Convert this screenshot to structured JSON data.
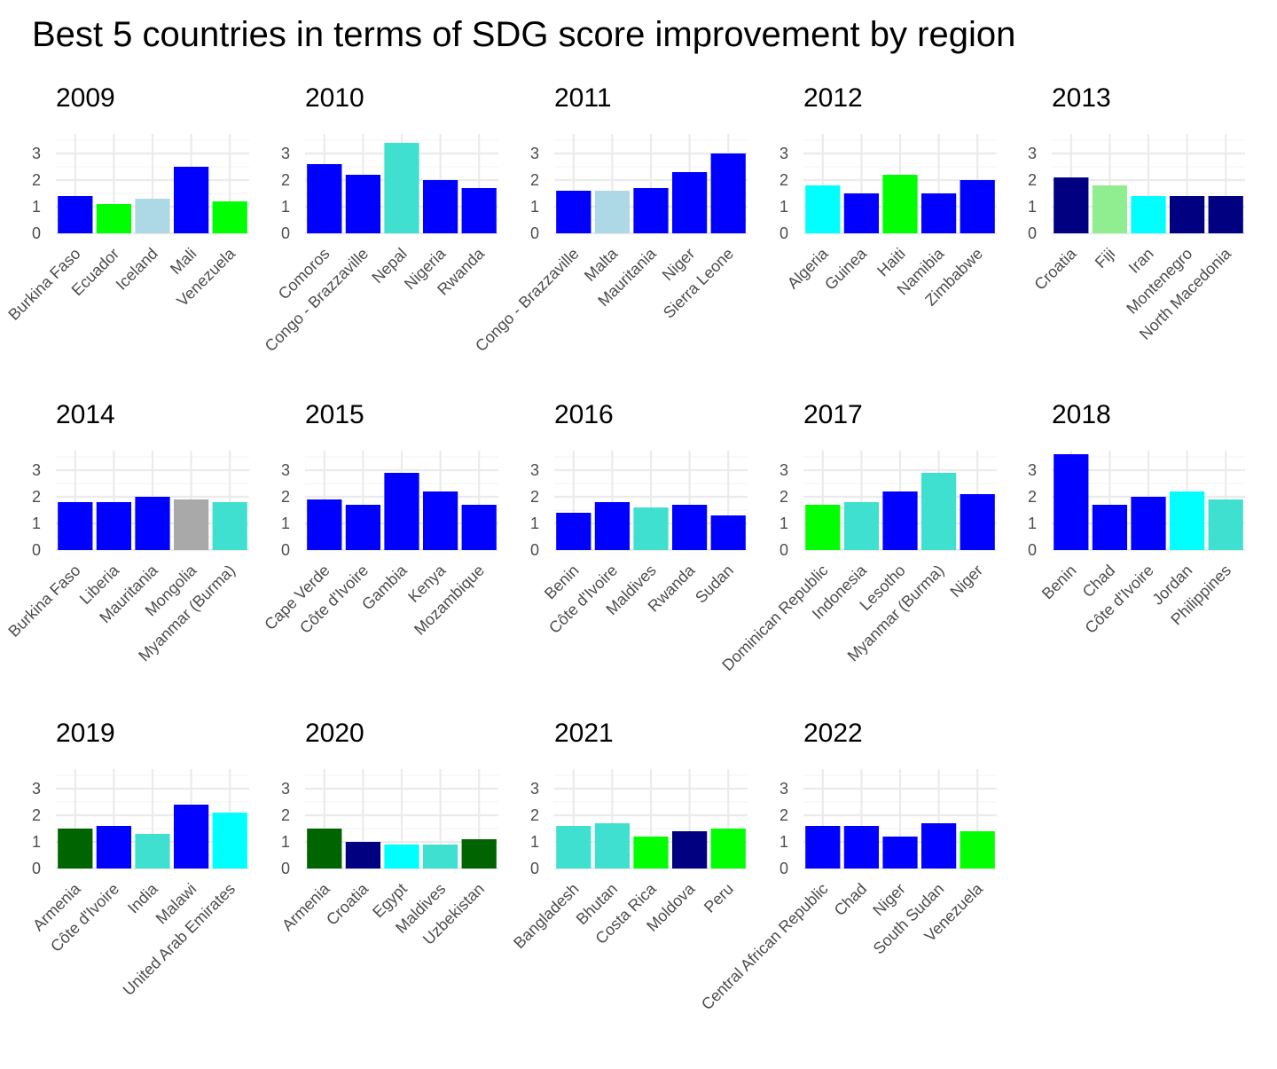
{
  "title": "Best 5 countries in terms of SDG score improvement by region",
  "chart_data": {
    "type": "bar",
    "title": "Best 5 countries in terms of SDG score improvement by region",
    "xlabel": "",
    "ylabel": "",
    "ylim": [
      0,
      3.6
    ],
    "yticks": [
      "0",
      "1",
      "2",
      "3"
    ],
    "grid": true,
    "legend": "none",
    "panels": [
      {
        "year": "2009",
        "categories": [
          "Burkina Faso",
          "Ecuador",
          "Iceland",
          "Mali",
          "Venezuela"
        ],
        "values": [
          1.4,
          1.1,
          1.3,
          2.5,
          1.2
        ],
        "colors": [
          "#0000ff",
          "#00ff00",
          "#add8e6",
          "#0000ff",
          "#00ff00"
        ]
      },
      {
        "year": "2010",
        "categories": [
          "Comoros",
          "Congo - Brazzaville",
          "Nepal",
          "Nigeria",
          "Rwanda"
        ],
        "values": [
          2.6,
          2.2,
          3.4,
          2.0,
          1.7
        ],
        "colors": [
          "#0000ff",
          "#0000ff",
          "#40e0d0",
          "#0000ff",
          "#0000ff"
        ]
      },
      {
        "year": "2011",
        "categories": [
          "Congo - Brazzaville",
          "Malta",
          "Mauritania",
          "Niger",
          "Sierra Leone"
        ],
        "values": [
          1.6,
          1.6,
          1.7,
          2.3,
          3.0
        ],
        "colors": [
          "#0000ff",
          "#add8e6",
          "#0000ff",
          "#0000ff",
          "#0000ff"
        ]
      },
      {
        "year": "2012",
        "categories": [
          "Algeria",
          "Guinea",
          "Haiti",
          "Namibia",
          "Zimbabwe"
        ],
        "values": [
          1.8,
          1.5,
          2.2,
          1.5,
          2.0
        ],
        "colors": [
          "#00ffff",
          "#0000ff",
          "#00ff00",
          "#0000ff",
          "#0000ff"
        ]
      },
      {
        "year": "2013",
        "categories": [
          "Croatia",
          "Fiji",
          "Iran",
          "Montenegro",
          "North Macedonia"
        ],
        "values": [
          2.1,
          1.8,
          1.4,
          1.4,
          1.4
        ],
        "colors": [
          "#000080",
          "#90ee90",
          "#00ffff",
          "#000080",
          "#000080"
        ]
      },
      {
        "year": "2014",
        "categories": [
          "Burkina Faso",
          "Liberia",
          "Mauritania",
          "Mongolia",
          "Myanmar (Burma)"
        ],
        "values": [
          1.8,
          1.8,
          2.0,
          1.9,
          1.8
        ],
        "colors": [
          "#0000ff",
          "#0000ff",
          "#0000ff",
          "#a9a9a9",
          "#40e0d0"
        ]
      },
      {
        "year": "2015",
        "categories": [
          "Cape Verde",
          "Côte d'Ivoire",
          "Gambia",
          "Kenya",
          "Mozambique"
        ],
        "values": [
          1.9,
          1.7,
          2.9,
          2.2,
          1.7
        ],
        "colors": [
          "#0000ff",
          "#0000ff",
          "#0000ff",
          "#0000ff",
          "#0000ff"
        ]
      },
      {
        "year": "2016",
        "categories": [
          "Benin",
          "Côte d'Ivoire",
          "Maldives",
          "Rwanda",
          "Sudan"
        ],
        "values": [
          1.4,
          1.8,
          1.6,
          1.7,
          1.3
        ],
        "colors": [
          "#0000ff",
          "#0000ff",
          "#40e0d0",
          "#0000ff",
          "#0000ff"
        ]
      },
      {
        "year": "2017",
        "categories": [
          "Dominican Republic",
          "Indonesia",
          "Lesotho",
          "Myanmar (Burma)",
          "Niger"
        ],
        "values": [
          1.7,
          1.8,
          2.2,
          2.9,
          2.1
        ],
        "colors": [
          "#00ff00",
          "#40e0d0",
          "#0000ff",
          "#40e0d0",
          "#0000ff"
        ]
      },
      {
        "year": "2018",
        "categories": [
          "Benin",
          "Chad",
          "Côte d'Ivoire",
          "Jordan",
          "Philippines"
        ],
        "values": [
          3.6,
          1.7,
          2.0,
          2.2,
          1.9
        ],
        "colors": [
          "#0000ff",
          "#0000ff",
          "#0000ff",
          "#00ffff",
          "#40e0d0"
        ]
      },
      {
        "year": "2019",
        "categories": [
          "Armenia",
          "Côte d'Ivoire",
          "India",
          "Malawi",
          "United Arab Emirates"
        ],
        "values": [
          1.5,
          1.6,
          1.3,
          2.4,
          2.1
        ],
        "colors": [
          "#006400",
          "#0000ff",
          "#40e0d0",
          "#0000ff",
          "#00ffff"
        ]
      },
      {
        "year": "2020",
        "categories": [
          "Armenia",
          "Croatia",
          "Egypt",
          "Maldives",
          "Uzbekistan"
        ],
        "values": [
          1.5,
          1.0,
          0.9,
          0.9,
          1.1
        ],
        "colors": [
          "#006400",
          "#000080",
          "#00ffff",
          "#40e0d0",
          "#006400"
        ]
      },
      {
        "year": "2021",
        "categories": [
          "Bangladesh",
          "Bhutan",
          "Costa Rica",
          "Moldova",
          "Peru"
        ],
        "values": [
          1.6,
          1.7,
          1.2,
          1.4,
          1.5
        ],
        "colors": [
          "#40e0d0",
          "#40e0d0",
          "#00ff00",
          "#000080",
          "#00ff00"
        ]
      },
      {
        "year": "2022",
        "categories": [
          "Central African Republic",
          "Chad",
          "Niger",
          "South Sudan",
          "Venezuela"
        ],
        "values": [
          1.6,
          1.6,
          1.2,
          1.7,
          1.4
        ],
        "colors": [
          "#0000ff",
          "#0000ff",
          "#0000ff",
          "#0000ff",
          "#00ff00"
        ]
      }
    ]
  }
}
